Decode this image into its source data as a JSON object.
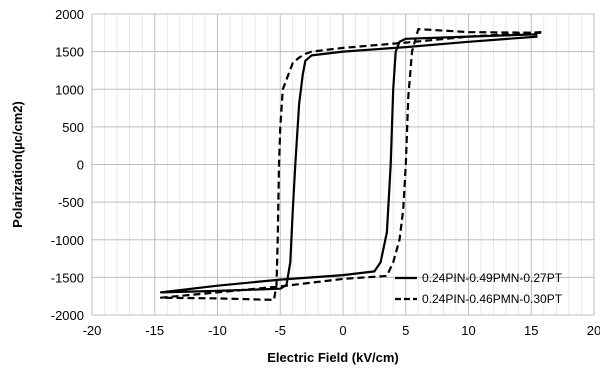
{
  "chart_data": {
    "type": "line",
    "title": "",
    "xlabel": "Electric Field (kV/cm)",
    "ylabel": "Polarization(µc/cm2)",
    "xlim": [
      -20,
      20
    ],
    "ylim": [
      -2000,
      2000
    ],
    "xticks": [
      -20,
      -15,
      -10,
      -5,
      0,
      5,
      10,
      15,
      20
    ],
    "yticks": [
      -2000,
      -1500,
      -1000,
      -500,
      0,
      500,
      1000,
      1500,
      2000
    ],
    "xtick_labels": [
      "-20",
      "-15",
      "-10",
      "-5",
      "0",
      "5",
      "10",
      "15",
      "20"
    ],
    "ytick_labels": [
      "-2000",
      "-1500",
      "-1000",
      "-500",
      "0",
      "500",
      "1000",
      "1500",
      "2000"
    ],
    "grid": true,
    "minor_x_grid": true,
    "legend_position": "bottom-right",
    "series": [
      {
        "name": "0.24PIN-0.49PMN-0.27PT",
        "style": "solid",
        "color": "#000000",
        "x": [
          15.5,
          10,
          5,
          4.5,
          4.2,
          4.0,
          3.8,
          3.5,
          3.0,
          2.5,
          0,
          -5,
          -10,
          -14.5,
          -10,
          -5,
          -4.5,
          -4.2,
          -4.0,
          -3.8,
          -3.5,
          -3.2,
          -3.0,
          -2.5,
          0,
          5,
          10,
          15.5
        ],
        "y": [
          1730,
          1700,
          1670,
          1630,
          1500,
          1000,
          0,
          -900,
          -1300,
          -1420,
          -1470,
          -1530,
          -1610,
          -1700,
          -1680,
          -1650,
          -1600,
          -1300,
          -600,
          0,
          800,
          1200,
          1380,
          1450,
          1500,
          1560,
          1630,
          1700
        ]
      },
      {
        "name": "0.24PIN-0.46PMN-0.30PT",
        "style": "dashed",
        "color": "#000000",
        "x": [
          15.8,
          10,
          6,
          5.5,
          5.2,
          5.0,
          4.8,
          4.5,
          4.0,
          3.5,
          0,
          -5,
          -14.5,
          -10,
          -5.5,
          -5.3,
          -5.2,
          -5.1,
          -5.0,
          -4.8,
          -4.0,
          -3.5,
          -3.0,
          -2.5,
          0,
          5,
          10,
          15.8
        ],
        "y": [
          1750,
          1760,
          1800,
          1500,
          900,
          0,
          -600,
          -1000,
          -1300,
          -1480,
          -1520,
          -1620,
          -1770,
          -1780,
          -1800,
          -1600,
          -1000,
          0,
          500,
          1000,
          1350,
          1420,
          1470,
          1500,
          1550,
          1620,
          1700,
          1760
        ]
      }
    ]
  }
}
